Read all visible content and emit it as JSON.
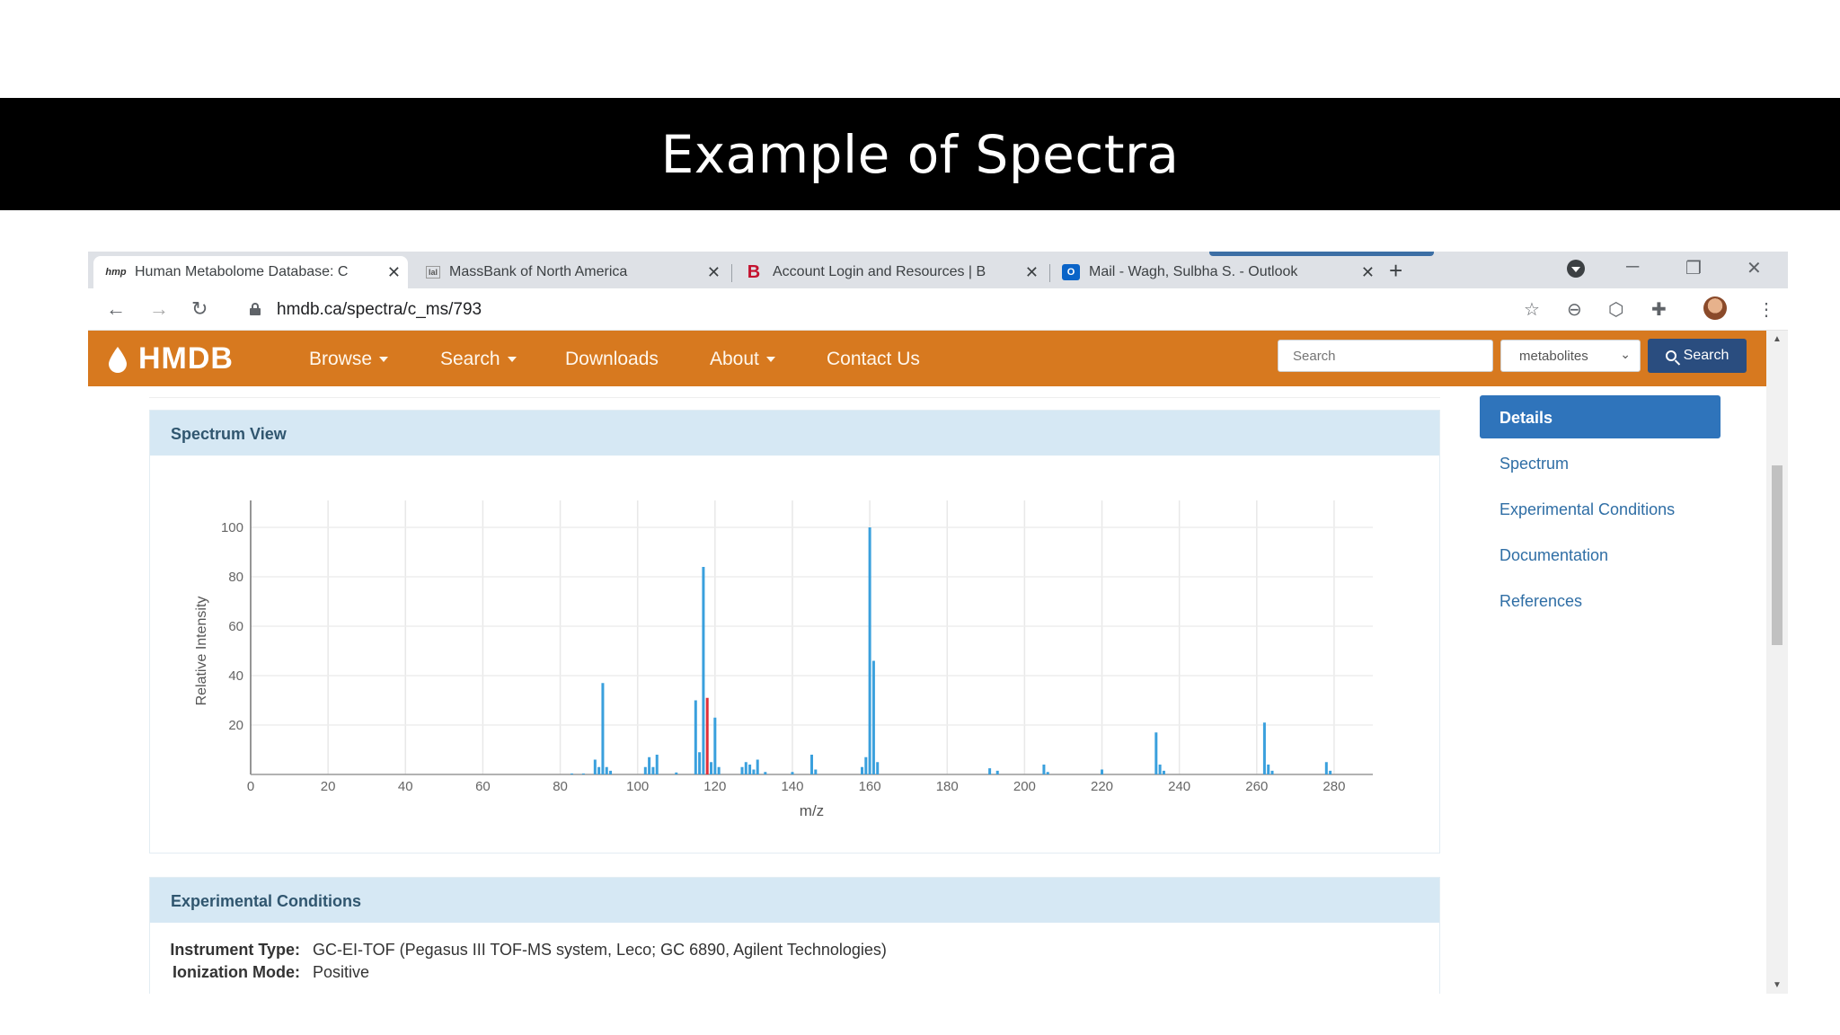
{
  "slide": {
    "title": "Example of Spectra"
  },
  "browser": {
    "tabs": [
      {
        "label": "Human Metabolome Database: C",
        "favicon": "hmp",
        "active": true
      },
      {
        "label": "MassBank of North America",
        "favicon": "lal"
      },
      {
        "label": "Account Login and Resources | B",
        "favicon": "B"
      },
      {
        "label": "Mail - Wagh, Sulbha S. - Outlook",
        "favicon": "O"
      }
    ],
    "url": "hmdb.ca/spectra/c_ms/793"
  },
  "site": {
    "logo": "HMDB",
    "nav": [
      "Browse",
      "Search",
      "Downloads",
      "About",
      "Contact Us"
    ],
    "search_placeholder": "Search",
    "search_type": "metabolites",
    "search_button": "Search",
    "colors": {
      "navbar": "#d7791f",
      "search_button": "#2a4d7f",
      "panel_header": "#d6e8f4",
      "peak": "#3aa0dd",
      "highlight_peak": "#e0303a"
    }
  },
  "spectrum_panel": {
    "title": "Spectrum View"
  },
  "sidebar": {
    "items": [
      "Details",
      "Spectrum",
      "Experimental Conditions",
      "Documentation",
      "References"
    ],
    "active": "Details"
  },
  "experimental": {
    "title": "Experimental Conditions",
    "rows": [
      {
        "label": "Instrument Type:",
        "value": "GC-EI-TOF (Pegasus III TOF-MS system, Leco; GC 6890, Agilent Technologies)"
      },
      {
        "label": "Ionization Mode:",
        "value": "Positive"
      }
    ]
  },
  "chart_data": {
    "type": "bar",
    "xlabel": "m/z",
    "ylabel": "Relative Intensity",
    "xlim": [
      0,
      290
    ],
    "ylim": [
      0,
      100
    ],
    "xticks": [
      0,
      20,
      40,
      60,
      80,
      100,
      120,
      140,
      160,
      180,
      200,
      220,
      240,
      260,
      280
    ],
    "yticks": [
      20,
      40,
      60,
      80,
      100
    ],
    "grid": true,
    "series": [
      {
        "x": [
          83,
          86,
          89,
          90,
          91,
          92,
          93,
          102,
          103,
          104,
          105,
          110,
          115,
          116,
          117,
          119,
          120,
          121,
          127,
          128,
          129,
          130,
          131,
          133,
          140,
          145,
          146,
          158,
          159,
          160,
          161,
          162,
          191,
          193,
          205,
          206,
          220,
          234,
          235,
          236,
          262,
          263,
          264,
          278,
          279
        ],
        "values": [
          0.4,
          0.4,
          6,
          3,
          37,
          3,
          1.5,
          3,
          7,
          3,
          8,
          0.8,
          30,
          9,
          84,
          5,
          23,
          3,
          3,
          5,
          4,
          2,
          6,
          1,
          1,
          8,
          2,
          3,
          7,
          100,
          46,
          5,
          2.5,
          1.5,
          4,
          1,
          2,
          17,
          4,
          1.5,
          21,
          4,
          1.5,
          5,
          1.5
        ]
      }
    ],
    "highlight": {
      "x": 118,
      "value": 31
    }
  }
}
